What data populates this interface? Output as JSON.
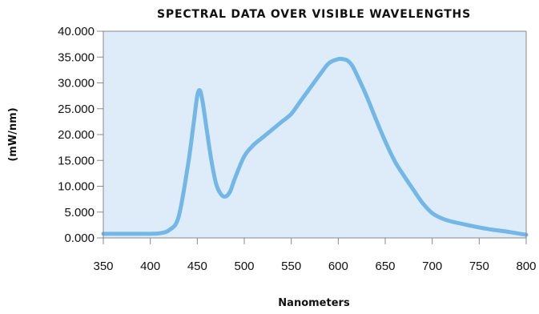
{
  "chart_data": {
    "type": "line",
    "title": "SPECTRAL DATA OVER VISIBLE WAVELENGTHS",
    "xlabel": "Nanometers",
    "ylabel": "(mW/nm)",
    "xlim": [
      350,
      800
    ],
    "ylim": [
      0,
      40
    ],
    "x_ticks": [
      350,
      400,
      450,
      500,
      550,
      600,
      650,
      700,
      750,
      800
    ],
    "y_ticks": [
      "0.000",
      "5.000",
      "10.000",
      "15.000",
      "20.000",
      "25.000",
      "30.000",
      "35.000",
      "40.000"
    ],
    "grid": false,
    "legend": false,
    "colors": {
      "plot_background": "#deecfa",
      "line": "#72b7e6",
      "frame": "#888888"
    },
    "series": [
      {
        "x": [
          350,
          380,
          400,
          410,
          420,
          430,
          440,
          446,
          450,
          453,
          456,
          460,
          465,
          470,
          475,
          480,
          485,
          490,
          500,
          510,
          520,
          530,
          540,
          550,
          560,
          570,
          580,
          590,
          600,
          605,
          610,
          615,
          620,
          630,
          640,
          650,
          660,
          670,
          680,
          690,
          700,
          710,
          720,
          740,
          760,
          780,
          800
        ],
        "y": [
          0.8,
          0.8,
          0.8,
          0.9,
          1.5,
          4.0,
          14.0,
          22.0,
          27.5,
          28.5,
          26.0,
          21.0,
          15.0,
          10.5,
          8.5,
          8.0,
          9.0,
          11.5,
          15.8,
          18.0,
          19.5,
          21.0,
          22.5,
          24.0,
          26.5,
          29.0,
          31.5,
          33.8,
          34.6,
          34.6,
          34.3,
          33.3,
          31.5,
          27.5,
          23.0,
          18.7,
          14.9,
          12.0,
          9.3,
          6.7,
          4.8,
          3.8,
          3.2,
          2.4,
          1.7,
          1.2,
          0.6
        ]
      }
    ]
  }
}
